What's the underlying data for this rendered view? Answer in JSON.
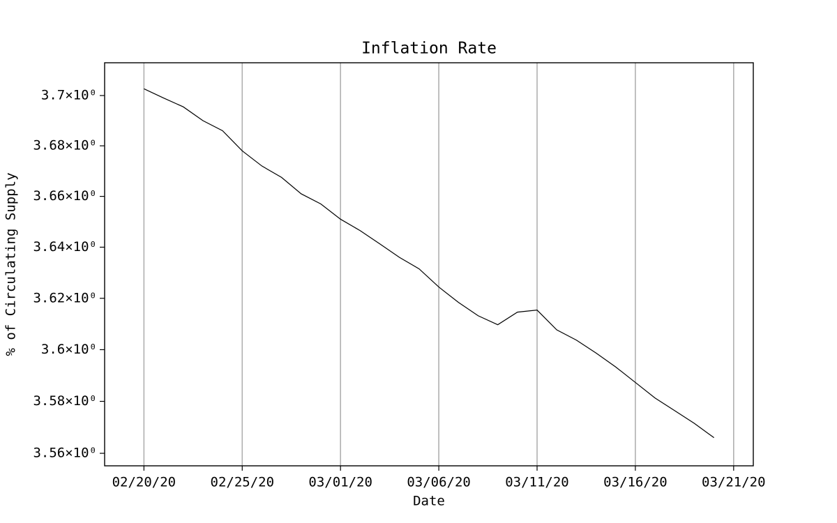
{
  "chart_data": {
    "type": "line",
    "title": "Inflation Rate",
    "x_label": "Date",
    "y_label": "% of Circulating Supply",
    "x": [
      "02/20/20",
      "02/21/20",
      "02/22/20",
      "02/23/20",
      "02/24/20",
      "02/25/20",
      "02/26/20",
      "02/27/20",
      "02/28/20",
      "02/29/20",
      "03/01/20",
      "03/02/20",
      "03/03/20",
      "03/04/20",
      "03/05/20",
      "03/06/20",
      "03/07/20",
      "03/08/20",
      "03/09/20",
      "03/10/20",
      "03/11/20",
      "03/12/20",
      "03/13/20",
      "03/14/20",
      "03/15/20",
      "03/16/20",
      "03/17/20",
      "03/18/20",
      "03/19/20",
      "03/20/20"
    ],
    "values": [
      3.7027,
      3.699,
      3.6955,
      3.69,
      3.686,
      3.678,
      3.672,
      3.6675,
      3.661,
      3.657,
      3.651,
      3.6465,
      3.6413,
      3.636,
      3.6315,
      3.6244,
      3.6184,
      3.6132,
      3.6097,
      3.6146,
      3.6154,
      3.6077,
      3.6037,
      3.5987,
      3.5933,
      3.5873,
      3.5813,
      3.5764,
      3.5715,
      3.566
    ],
    "color": "#000000",
    "yscale": "log",
    "xlim": [
      "02/18/20",
      "03/22/20"
    ],
    "ylim": [
      3.5552,
      3.7131
    ],
    "xticks": [
      "02/20/20",
      "02/25/20",
      "03/01/20",
      "03/06/20",
      "03/11/20",
      "03/16/20",
      "03/21/20"
    ],
    "yticks": [
      {
        "value": 3.56,
        "label": "3.56×10⁰"
      },
      {
        "value": 3.58,
        "label": "3.58×10⁰"
      },
      {
        "value": 3.6,
        "label": "3.6×10⁰"
      },
      {
        "value": 3.62,
        "label": "3.62×10⁰"
      },
      {
        "value": 3.64,
        "label": "3.64×10⁰"
      },
      {
        "value": 3.66,
        "label": "3.66×10⁰"
      },
      {
        "value": 3.68,
        "label": "3.68×10⁰"
      },
      {
        "value": 3.7,
        "label": "3.7×10⁰"
      }
    ],
    "grid": "x"
  }
}
